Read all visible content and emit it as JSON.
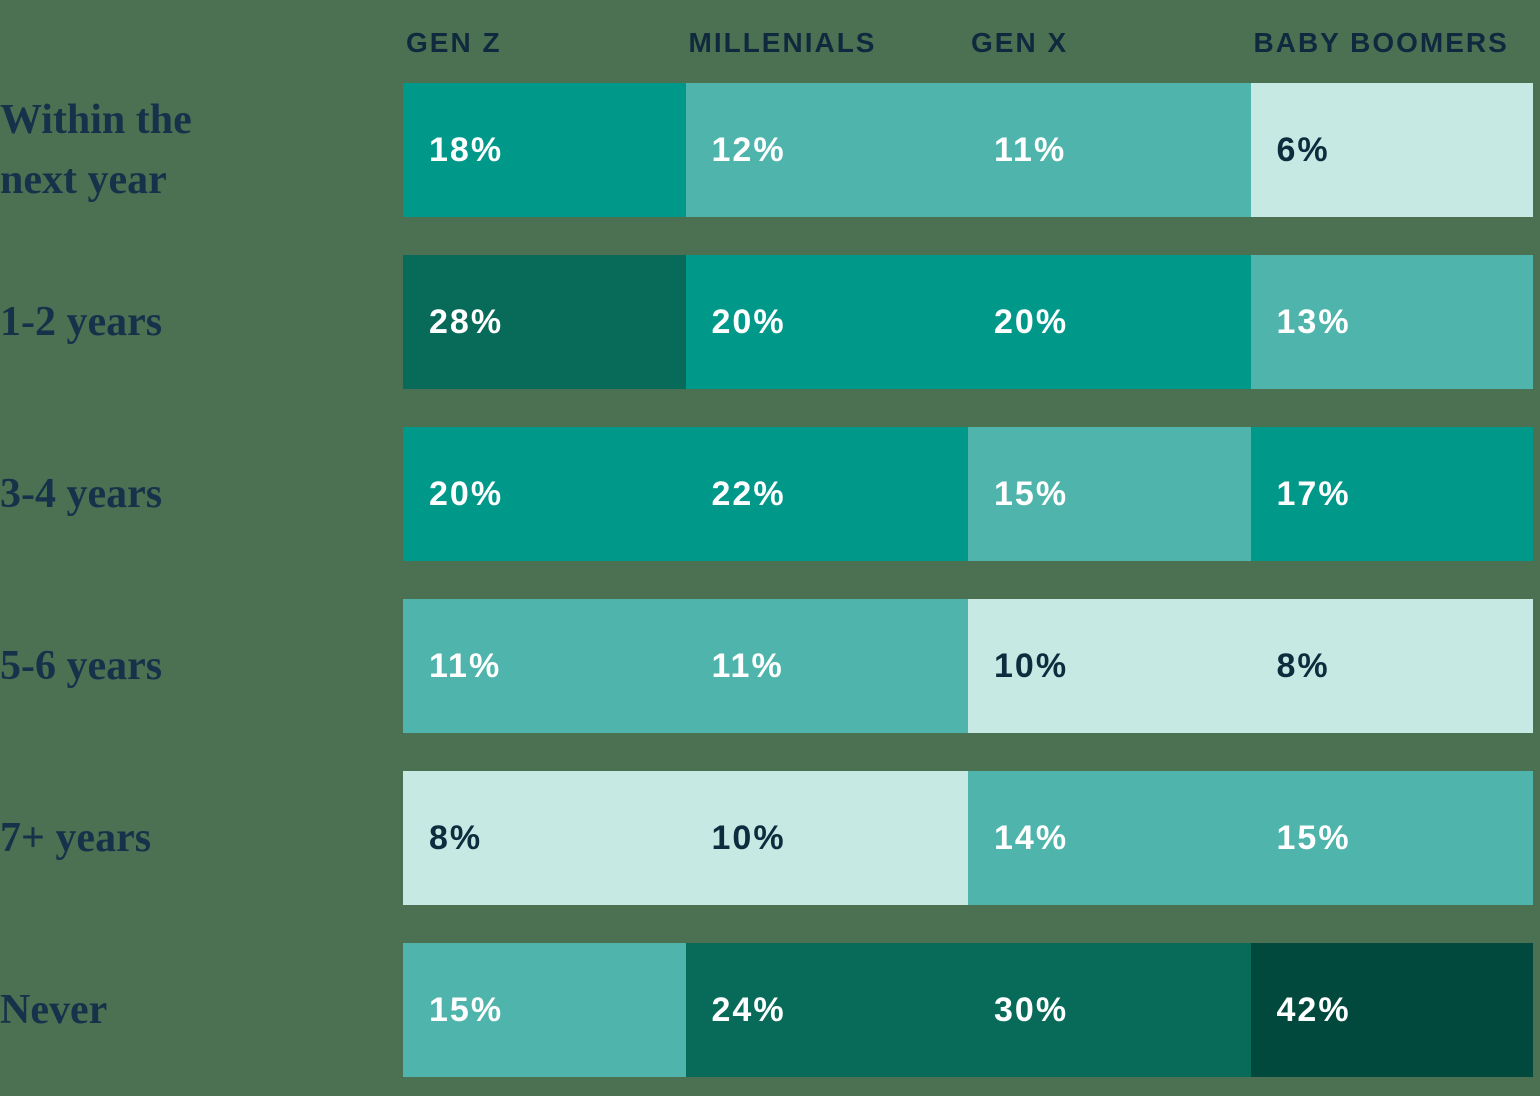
{
  "colors": {
    "background": "#4b7152",
    "navy_text": "#16324a",
    "header_text": "#11293e",
    "tone_darkest": "#02493d",
    "tone_dark": "#086a58",
    "tone_medium": "#009889",
    "tone_light": "#4fb4ab",
    "tone_mint": "#c7e9e3",
    "value_text_light": "#ffffff",
    "value_text_dark": "#0f2c3f"
  },
  "columns": [
    {
      "label": "GEN Z"
    },
    {
      "label": "MILLENIALS"
    },
    {
      "label": "GEN X"
    },
    {
      "label": "BABY BOOMERS"
    }
  ],
  "rows": [
    {
      "label": "Within the next year",
      "cells": [
        {
          "value": "18%",
          "style": "tone-medium ink-light"
        },
        {
          "value": "12%",
          "style": "tone-light ink-light"
        },
        {
          "value": "11%",
          "style": "tone-light ink-light"
        },
        {
          "value": "6%",
          "style": "tone-mint ink-dark"
        }
      ]
    },
    {
      "label": "1-2 years",
      "cells": [
        {
          "value": "28%",
          "style": "tone-dark ink-light"
        },
        {
          "value": "20%",
          "style": "tone-medium ink-light"
        },
        {
          "value": "20%",
          "style": "tone-medium ink-light"
        },
        {
          "value": "13%",
          "style": "tone-light ink-light"
        }
      ]
    },
    {
      "label": "3-4 years",
      "cells": [
        {
          "value": "20%",
          "style": "tone-medium ink-light"
        },
        {
          "value": "22%",
          "style": "tone-medium ink-light"
        },
        {
          "value": "15%",
          "style": "tone-light ink-light"
        },
        {
          "value": "17%",
          "style": "tone-medium ink-light"
        }
      ]
    },
    {
      "label": "5-6 years",
      "cells": [
        {
          "value": "11%",
          "style": "tone-light ink-light"
        },
        {
          "value": "11%",
          "style": "tone-light ink-light"
        },
        {
          "value": "10%",
          "style": "tone-mint ink-dark"
        },
        {
          "value": "8%",
          "style": "tone-mint ink-dark"
        }
      ]
    },
    {
      "label": "7+ years",
      "cells": [
        {
          "value": "8%",
          "style": "tone-mint ink-dark"
        },
        {
          "value": "10%",
          "style": "tone-mint ink-dark"
        },
        {
          "value": "14%",
          "style": "tone-light ink-light"
        },
        {
          "value": "15%",
          "style": "tone-light ink-light"
        }
      ]
    },
    {
      "label": "Never",
      "cells": [
        {
          "value": "15%",
          "style": "tone-light ink-light"
        },
        {
          "value": "24%",
          "style": "tone-dark ink-light"
        },
        {
          "value": "30%",
          "style": "tone-dark ink-light"
        },
        {
          "value": "42%",
          "style": "tone-darkest ink-light"
        }
      ]
    }
  ],
  "chart_data": {
    "type": "heatmap",
    "columns": [
      "GEN Z",
      "MILLENIALS",
      "GEN X",
      "BABY BOOMERS"
    ],
    "rows": [
      "Within the next year",
      "1-2 years",
      "3-4 years",
      "5-6 years",
      "7+ years",
      "Never"
    ],
    "unit": "%",
    "values_percent": [
      [
        18,
        12,
        11,
        6
      ],
      [
        28,
        20,
        20,
        13
      ],
      [
        20,
        22,
        15,
        17
      ],
      [
        11,
        11,
        10,
        8
      ],
      [
        8,
        10,
        14,
        15
      ],
      [
        15,
        24,
        30,
        42
      ]
    ],
    "color_scale_low_to_high": [
      "#c7e9e3",
      "#4fb4ab",
      "#009889",
      "#086a58",
      "#02493d"
    ],
    "legend_position": "none",
    "grid": false,
    "title": ""
  }
}
